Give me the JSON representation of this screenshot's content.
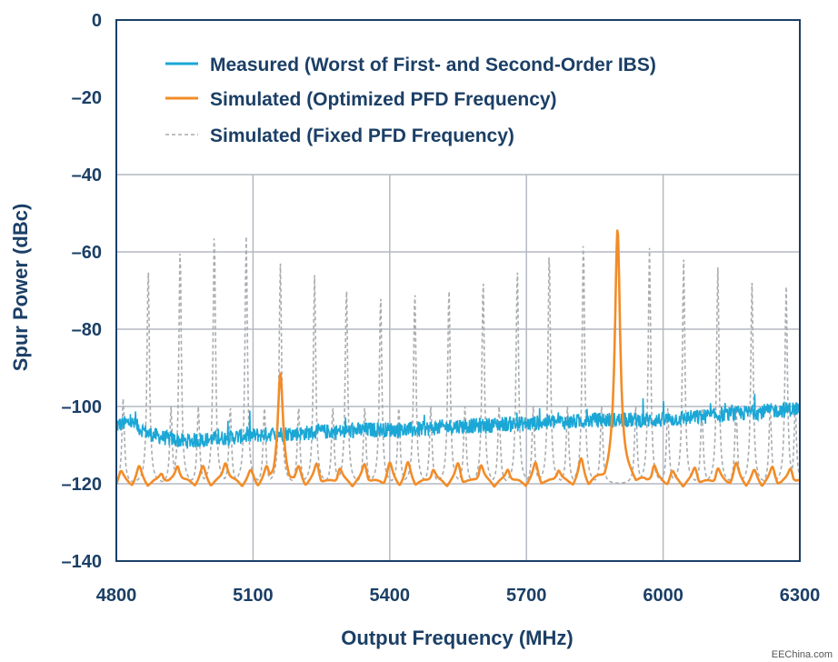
{
  "chart_data": {
    "type": "line",
    "title": "",
    "xlabel": "Output Frequency (MHz)",
    "ylabel": "Spur Power (dBc)",
    "xlim": [
      4800,
      6300
    ],
    "ylim": [
      -140,
      0
    ],
    "xticks": [
      4800,
      5100,
      5400,
      5700,
      6000,
      6300
    ],
    "yticks": [
      0,
      -20,
      -40,
      -60,
      -80,
      -100,
      -120,
      -140
    ],
    "xtick_labels": [
      "4800",
      "5100",
      "5400",
      "5700",
      "6000",
      "6300"
    ],
    "ytick_labels": [
      "0",
      "–20",
      "–40",
      "–60",
      "–80",
      "–100",
      "–120",
      "–140"
    ],
    "grid": true,
    "legend_position": "top-center",
    "series": [
      {
        "name": "Measured (Worst of First- and Second-Order IBS)",
        "color": "#1ba7d6",
        "style": "solid",
        "x": [
          4800,
          4830,
          4870,
          4900,
          4950,
          5000,
          5050,
          5100,
          5150,
          5200,
          5250,
          5300,
          5350,
          5400,
          5450,
          5500,
          5550,
          5600,
          5650,
          5700,
          5750,
          5800,
          5850,
          5900,
          5950,
          6000,
          6050,
          6100,
          6150,
          6200,
          6250,
          6300
        ],
        "y": [
          -105,
          -104,
          -107,
          -108,
          -109,
          -108.5,
          -108,
          -107.5,
          -107,
          -107,
          -106.5,
          -106.5,
          -106,
          -106,
          -106,
          -105.5,
          -105,
          -105,
          -104.5,
          -104.5,
          -104,
          -104,
          -103.5,
          -103.5,
          -103.5,
          -103.5,
          -103,
          -102.5,
          -102,
          -101.5,
          -101,
          -100.5
        ]
      },
      {
        "name": "Simulated (Optimized PFD Frequency)",
        "color": "#f28c28",
        "style": "solid",
        "baseline": -121,
        "peaks": [
          {
            "x": 4810,
            "y": -118
          },
          {
            "x": 4850,
            "y": -117
          },
          {
            "x": 4900,
            "y": -118
          },
          {
            "x": 4935,
            "y": -116
          },
          {
            "x": 4990,
            "y": -117
          },
          {
            "x": 5040,
            "y": -115
          },
          {
            "x": 5095,
            "y": -118
          },
          {
            "x": 5130,
            "y": -117
          },
          {
            "x": 5160,
            "y": -93
          },
          {
            "x": 5200,
            "y": -117
          },
          {
            "x": 5240,
            "y": -116
          },
          {
            "x": 5290,
            "y": -117
          },
          {
            "x": 5345,
            "y": -116
          },
          {
            "x": 5400,
            "y": -116
          },
          {
            "x": 5440,
            "y": -116
          },
          {
            "x": 5495,
            "y": -117
          },
          {
            "x": 5550,
            "y": -116
          },
          {
            "x": 5600,
            "y": -116
          },
          {
            "x": 5660,
            "y": -117
          },
          {
            "x": 5720,
            "y": -116
          },
          {
            "x": 5770,
            "y": -117
          },
          {
            "x": 5820,
            "y": -115
          },
          {
            "x": 5900,
            "y": -55
          },
          {
            "x": 5980,
            "y": -116
          },
          {
            "x": 6020,
            "y": -118
          },
          {
            "x": 6070,
            "y": -117
          },
          {
            "x": 6120,
            "y": -117
          },
          {
            "x": 6160,
            "y": -116
          },
          {
            "x": 6200,
            "y": -118
          },
          {
            "x": 6240,
            "y": -117
          },
          {
            "x": 6280,
            "y": -117
          }
        ]
      },
      {
        "name": "Simulated (Fixed PFD Frequency)",
        "color": "#a9acb0",
        "style": "dashed",
        "baseline": -120,
        "peaks": [
          {
            "x": 4815,
            "y": -98
          },
          {
            "x": 4870,
            "y": -64
          },
          {
            "x": 4920,
            "y": -100
          },
          {
            "x": 4940,
            "y": -59
          },
          {
            "x": 4980,
            "y": -100
          },
          {
            "x": 5015,
            "y": -55
          },
          {
            "x": 5050,
            "y": -100
          },
          {
            "x": 5085,
            "y": -56
          },
          {
            "x": 5125,
            "y": -100
          },
          {
            "x": 5160,
            "y": -63
          },
          {
            "x": 5200,
            "y": -100
          },
          {
            "x": 5235,
            "y": -66
          },
          {
            "x": 5275,
            "y": -100
          },
          {
            "x": 5305,
            "y": -69
          },
          {
            "x": 5345,
            "y": -100
          },
          {
            "x": 5380,
            "y": -71
          },
          {
            "x": 5420,
            "y": -100
          },
          {
            "x": 5455,
            "y": -70
          },
          {
            "x": 5490,
            "y": -100
          },
          {
            "x": 5530,
            "y": -69
          },
          {
            "x": 5565,
            "y": -100
          },
          {
            "x": 5605,
            "y": -67
          },
          {
            "x": 5640,
            "y": -100
          },
          {
            "x": 5680,
            "y": -64
          },
          {
            "x": 5715,
            "y": -100
          },
          {
            "x": 5750,
            "y": -60
          },
          {
            "x": 5790,
            "y": -100
          },
          {
            "x": 5825,
            "y": -57
          },
          {
            "x": 5865,
            "y": -100
          },
          {
            "x": 5940,
            "y": -100
          },
          {
            "x": 5970,
            "y": -59
          },
          {
            "x": 6010,
            "y": -100
          },
          {
            "x": 6045,
            "y": -62
          },
          {
            "x": 6085,
            "y": -100
          },
          {
            "x": 6120,
            "y": -64
          },
          {
            "x": 6160,
            "y": -100
          },
          {
            "x": 6195,
            "y": -68
          },
          {
            "x": 6235,
            "y": -100
          },
          {
            "x": 6270,
            "y": -69
          },
          {
            "x": 6290,
            "y": -100
          }
        ]
      }
    ]
  },
  "watermark": "EEChina.com"
}
